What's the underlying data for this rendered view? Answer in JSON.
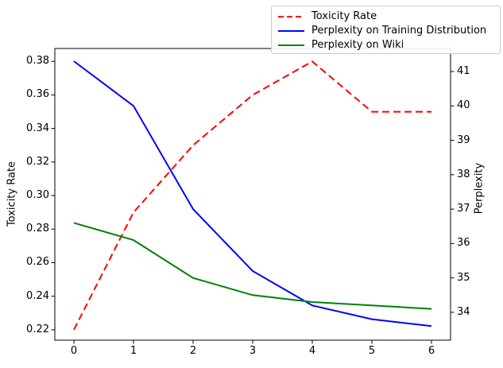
{
  "chart_data": {
    "type": "line",
    "title": "",
    "xlabel": "",
    "ylabel_left": "Toxicity Rate",
    "ylabel_right": "Perplexity",
    "x": [
      0,
      1,
      2,
      3,
      4,
      5,
      6
    ],
    "series": [
      {
        "name": "Toxicity Rate",
        "axis": "left",
        "color": "#ff0000",
        "style": "dashed",
        "values": [
          0.22,
          0.29,
          0.33,
          0.36,
          0.38,
          0.35,
          0.35
        ]
      },
      {
        "name": "Perplexity on Training Distribution",
        "axis": "right",
        "color": "#0000ff",
        "style": "solid",
        "values": [
          41.3,
          40.0,
          37.0,
          35.2,
          34.2,
          33.8,
          33.6
        ]
      },
      {
        "name": "Perplexity on Wiki",
        "axis": "right",
        "color": "#008000",
        "style": "solid",
        "values": [
          36.6,
          36.1,
          35.0,
          34.5,
          34.3,
          34.2,
          34.1
        ]
      }
    ],
    "x_ticks": [
      0,
      1,
      2,
      3,
      4,
      5,
      6
    ],
    "y_ticks_left": [
      0.22,
      0.24,
      0.26,
      0.28,
      0.3,
      0.32,
      0.34,
      0.36,
      0.38
    ],
    "y_ticks_right": [
      34,
      35,
      36,
      37,
      38,
      39,
      40,
      41
    ],
    "xlim": [
      -0.32,
      6.32
    ],
    "ylim_left": [
      0.2138,
      0.3877
    ],
    "ylim_right": [
      33.19,
      41.67
    ],
    "grid": false,
    "legend_position": "upper right"
  }
}
